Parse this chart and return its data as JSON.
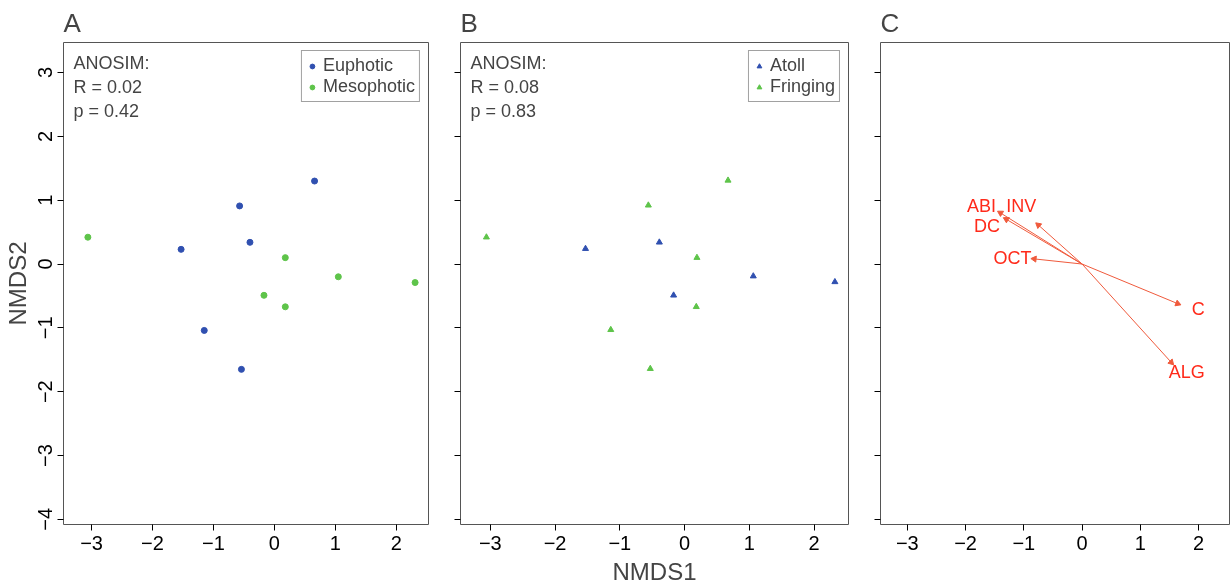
{
  "chart_data": [
    {
      "type": "scatter",
      "title": "A",
      "ylabel": "NMDS2",
      "xlim": [
        -3.46,
        2.53
      ],
      "ylim": [
        -4.08,
        3.47
      ],
      "xticks": [
        -3,
        -2,
        -1,
        0,
        1,
        2
      ],
      "yticks": [
        -4,
        -3,
        -2,
        -1,
        0,
        1,
        2,
        3
      ],
      "grid": false,
      "legend": "top right",
      "marker": "circle",
      "annotations": [
        "ANOSIM:\nR = 0.02\np = 0.42"
      ],
      "series": [
        {
          "name": "Euphotic",
          "color": "#3050b0",
          "x": [
            -0.57,
            0.66,
            -1.53,
            -0.4,
            -1.15,
            -0.54
          ],
          "values": [
            0.91,
            1.3,
            0.23,
            0.34,
            -1.04,
            -1.65
          ]
        },
        {
          "name": "Mesophotic",
          "color": "#5ec44a",
          "x": [
            -3.06,
            0.18,
            1.05,
            2.31,
            -0.17,
            0.18
          ],
          "values": [
            0.42,
            0.1,
            -0.2,
            -0.29,
            -0.49,
            -0.67
          ]
        }
      ]
    },
    {
      "type": "scatter",
      "title": "B",
      "xlabel": "NMDS1",
      "xlim": [
        -3.46,
        2.53
      ],
      "ylim": [
        -4.08,
        3.47
      ],
      "xticks": [
        -3,
        -2,
        -1,
        0,
        1,
        2
      ],
      "yticks": [
        -4,
        -3,
        -2,
        -1,
        0,
        1,
        2,
        3
      ],
      "tick_labels": "x",
      "grid": false,
      "legend": "top right",
      "marker": "triangle",
      "annotations": [
        "ANOSIM:\nR = 0.08\np = 0.83"
      ],
      "series": [
        {
          "name": "Atoll",
          "color": "#3050b0",
          "x": [
            -1.53,
            -0.39,
            -0.17,
            1.06,
            2.32
          ],
          "values": [
            0.24,
            0.34,
            -0.49,
            -0.19,
            -0.28
          ]
        },
        {
          "name": "Fringing",
          "color": "#5ec44a",
          "x": [
            -3.06,
            -0.56,
            0.67,
            0.19,
            0.18,
            -1.14,
            -0.53
          ],
          "values": [
            0.42,
            0.92,
            1.31,
            0.1,
            -0.67,
            -1.03,
            -1.64
          ]
        }
      ]
    },
    {
      "type": "scatter",
      "title": "C",
      "xlim": [
        -3.46,
        2.53
      ],
      "ylim": [
        -4.08,
        3.47
      ],
      "xticks": [
        -3,
        -2,
        -1,
        0,
        1,
        2
      ],
      "yticks": [
        -4,
        -3,
        -2,
        -1,
        0,
        1,
        2,
        3
      ],
      "tick_labels": "x",
      "grid": false,
      "marker": "triangle",
      "line_style": "solid",
      "annotations": [
        {
          "text": "ABI",
          "x": -1.4,
          "y": 0.8
        },
        {
          "text": "DC",
          "x": -1.3,
          "y": 0.7
        },
        {
          "text": "INV",
          "x": -0.75,
          "y": 0.61
        },
        {
          "text": "OCT",
          "x": -0.82,
          "y": 0.08
        },
        {
          "text": "C",
          "x": 1.64,
          "y": -0.62
        },
        {
          "text": "ALG",
          "x": 1.53,
          "y": -1.54
        }
      ],
      "series": [
        {
          "color": "#f05a3c",
          "x": [
            -1.4,
            -1.3,
            -0.75,
            -0.82,
            1.64,
            1.53
          ],
          "values": [
            0.8,
            0.7,
            0.61,
            0.08,
            -0.62,
            -1.54
          ]
        }
      ]
    }
  ]
}
